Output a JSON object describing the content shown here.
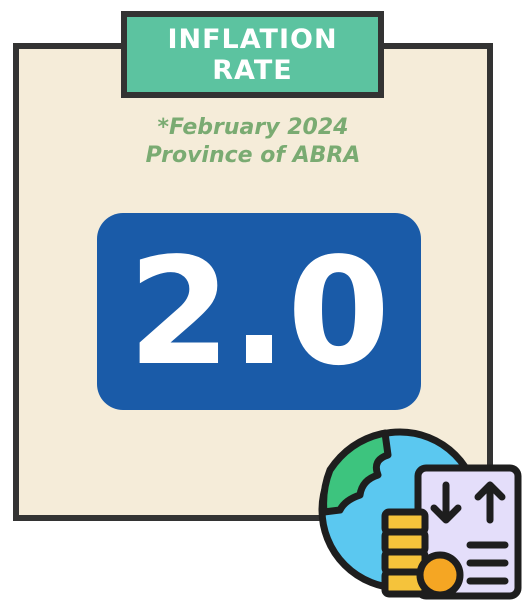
{
  "header": {
    "title": "INFLATION RATE"
  },
  "subtitle": {
    "line1": "*February 2024",
    "line2": "Province of ABRA"
  },
  "rate": {
    "value": "2.0"
  }
}
